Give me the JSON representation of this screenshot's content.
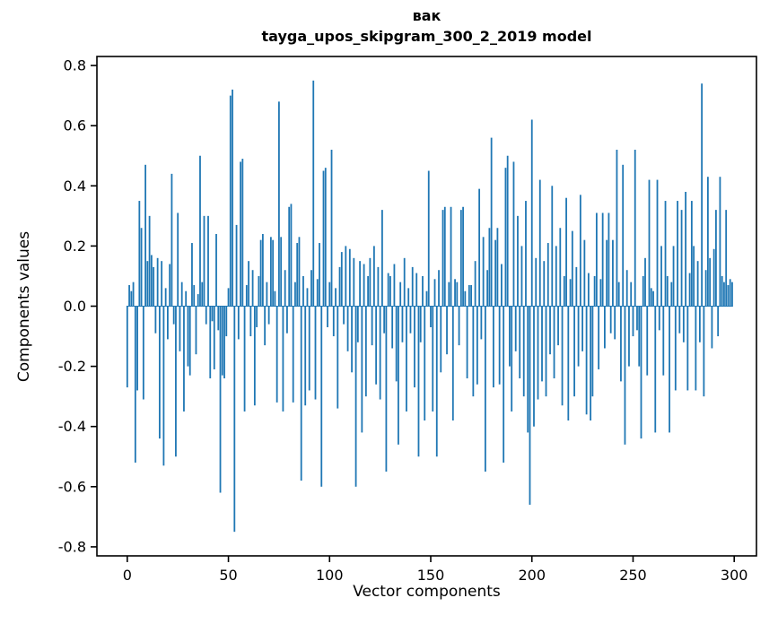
{
  "figure": {
    "background": "#ffffff",
    "axes_color": "#000000"
  },
  "chart_data": {
    "type": "bar",
    "title": "вак",
    "subtitle": "tayga_upos_skipgram_300_2_2019 model",
    "xlabel": "Vector components",
    "ylabel": "Components values",
    "xlim": [
      -15,
      311
    ],
    "ylim": [
      -0.83,
      0.83
    ],
    "xticks": [
      0,
      50,
      100,
      150,
      200,
      250,
      300
    ],
    "yticks": [
      -0.8,
      -0.6,
      -0.4,
      -0.2,
      0.0,
      0.2,
      0.4,
      0.6,
      0.8
    ],
    "grid": false,
    "legend": "none",
    "bar_color": "#1f77b4",
    "bar_width": 0.8,
    "values": [
      -0.27,
      0.07,
      0.05,
      0.08,
      -0.52,
      -0.28,
      0.35,
      0.26,
      -0.31,
      0.47,
      0.15,
      0.3,
      0.17,
      0.13,
      -0.09,
      0.16,
      -0.44,
      0.15,
      -0.53,
      0.06,
      -0.11,
      0.14,
      0.44,
      -0.06,
      -0.5,
      0.31,
      -0.15,
      0.08,
      -0.35,
      0.05,
      -0.2,
      -0.23,
      0.21,
      0.07,
      -0.16,
      0.04,
      0.5,
      0.08,
      0.3,
      -0.06,
      0.3,
      -0.24,
      -0.05,
      -0.21,
      0.24,
      -0.08,
      -0.62,
      -0.23,
      -0.24,
      -0.1,
      0.06,
      0.7,
      0.72,
      -0.75,
      0.27,
      -0.11,
      0.48,
      0.49,
      -0.35,
      0.07,
      0.15,
      -0.1,
      0.12,
      -0.33,
      -0.07,
      0.1,
      0.22,
      0.24,
      -0.13,
      0.08,
      -0.06,
      0.23,
      0.22,
      0.05,
      -0.32,
      0.68,
      0.23,
      -0.35,
      0.12,
      -0.09,
      0.33,
      0.34,
      -0.32,
      0.08,
      0.21,
      0.23,
      -0.58,
      0.1,
      -0.33,
      0.06,
      -0.28,
      0.12,
      0.75,
      -0.31,
      0.09,
      0.21,
      -0.6,
      0.45,
      0.46,
      -0.07,
      0.08,
      0.52,
      -0.1,
      0.06,
      -0.34,
      0.13,
      0.18,
      -0.06,
      0.2,
      -0.15,
      0.19,
      -0.22,
      0.16,
      -0.6,
      -0.12,
      0.15,
      -0.42,
      0.14,
      -0.3,
      0.1,
      0.16,
      -0.13,
      0.2,
      -0.26,
      0.13,
      -0.31,
      0.32,
      -0.09,
      -0.55,
      0.11,
      0.1,
      -0.14,
      0.14,
      -0.25,
      -0.46,
      0.08,
      -0.12,
      0.16,
      -0.35,
      0.06,
      -0.09,
      0.13,
      -0.27,
      0.11,
      -0.5,
      -0.12,
      0.1,
      -0.38,
      0.05,
      0.45,
      -0.07,
      -0.35,
      0.09,
      -0.5,
      0.12,
      -0.22,
      0.32,
      0.33,
      -0.16,
      0.08,
      0.33,
      -0.38,
      0.09,
      0.08,
      -0.13,
      0.32,
      0.33,
      0.05,
      -0.24,
      0.07,
      0.07,
      -0.3,
      0.15,
      -0.26,
      0.39,
      -0.11,
      0.23,
      -0.55,
      0.12,
      0.26,
      0.56,
      -0.27,
      0.22,
      0.26,
      -0.26,
      0.14,
      -0.52,
      0.46,
      0.5,
      -0.2,
      -0.35,
      0.48,
      -0.15,
      0.3,
      -0.24,
      0.2,
      -0.3,
      0.35,
      -0.42,
      -0.66,
      0.62,
      -0.4,
      0.16,
      -0.31,
      0.42,
      -0.25,
      0.15,
      -0.3,
      0.21,
      -0.16,
      0.4,
      -0.24,
      0.2,
      -0.13,
      0.26,
      -0.33,
      0.1,
      0.36,
      -0.38,
      0.09,
      0.25,
      -0.3,
      0.13,
      -0.2,
      0.37,
      -0.15,
      0.22,
      -0.36,
      0.11,
      -0.38,
      -0.3,
      0.1,
      0.31,
      -0.21,
      0.09,
      0.31,
      -0.14,
      0.22,
      0.31,
      -0.09,
      0.22,
      -0.11,
      0.52,
      0.08,
      -0.25,
      0.47,
      -0.46,
      0.12,
      -0.2,
      0.08,
      -0.1,
      0.52,
      -0.08,
      -0.2,
      -0.44,
      0.1,
      0.16,
      -0.23,
      0.42,
      0.06,
      0.05,
      -0.42,
      0.42,
      -0.08,
      0.2,
      -0.23,
      0.35,
      0.1,
      -0.42,
      0.08,
      0.2,
      -0.28,
      0.35,
      -0.09,
      0.32,
      -0.12,
      0.38,
      -0.28,
      0.11,
      0.35,
      0.2,
      -0.28,
      0.15,
      -0.12,
      0.74,
      -0.3,
      0.12,
      0.43,
      0.16,
      -0.14,
      0.19,
      0.32,
      -0.1,
      0.43,
      0.1,
      0.08,
      0.32,
      0.07,
      0.09,
      0.08
    ]
  }
}
